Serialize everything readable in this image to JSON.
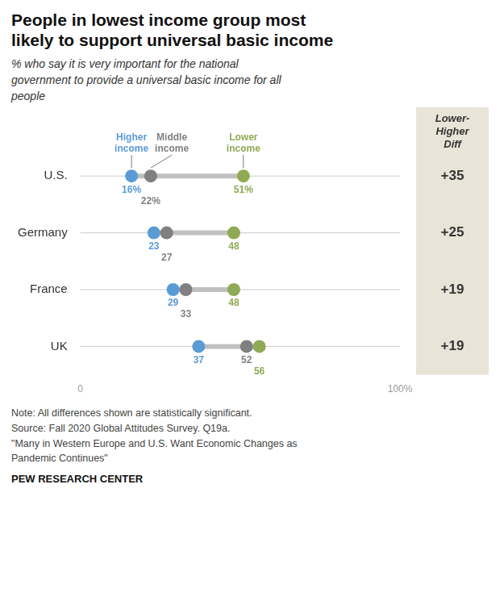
{
  "chart_data": {
    "type": "scatter",
    "orientation": "horizontal",
    "marker": "circle",
    "title": "People in lowest income group most\nlikely to support universal basic income",
    "subtitle": "% who say it is very important for the national\ngovernment to provide a universal basic income for all\npeople",
    "categories": [
      "U.S.",
      "Germany",
      "France",
      "UK"
    ],
    "series": [
      {
        "name": "Higher\nincome",
        "color": "#5b9bd5",
        "values": [
          16,
          23,
          29,
          37
        ],
        "value_labels": [
          "16%",
          "23",
          "29",
          "37"
        ]
      },
      {
        "name": "Middle\nincome",
        "color": "#808080",
        "values": [
          22,
          27,
          33,
          52
        ],
        "value_labels": [
          "22%",
          "27",
          "33",
          "52"
        ]
      },
      {
        "name": "Lower\nincome",
        "color": "#8faa54",
        "values": [
          51,
          48,
          48,
          56
        ],
        "value_labels": [
          "51%",
          "48",
          "48",
          "56"
        ]
      }
    ],
    "xlim": [
      0,
      100
    ],
    "xticks": [
      0,
      {
        "value": 100,
        "label": "100%"
      }
    ],
    "grid": false,
    "data_labels": true,
    "diff": {
      "title": "Lower-\nHigher\nDiff",
      "values": [
        35,
        25,
        19,
        19
      ],
      "value_labels": [
        "+35",
        "+25",
        "+19",
        "+19"
      ],
      "color": "#e8e4d8"
    },
    "note": "Note: All differences shown are statistically significant.\nSource: Fall 2020 Global Attitudes Survey. Q19a.\n\"Many in Western Europe and U.S. Want Economic Changes as\nPandemic Continues\"",
    "source": "PEW RESEARCH CENTER"
  }
}
